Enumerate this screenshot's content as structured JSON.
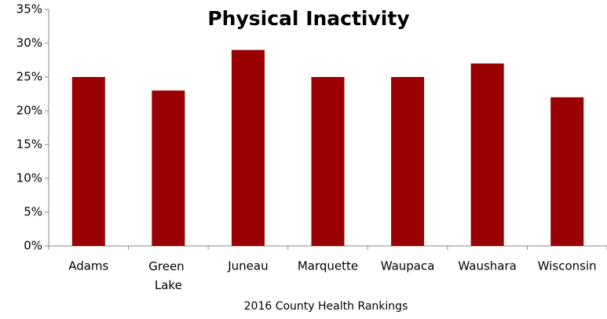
{
  "chart_data": {
    "type": "bar",
    "title": "Physical Inactivity",
    "xlabel": "2016 County Health Rankings",
    "categories": [
      "Adams",
      "Green Lake",
      "Juneau",
      "Marquette",
      "Waupaca",
      "Waushara",
      "Wisconsin"
    ],
    "values": [
      25,
      23,
      29,
      25,
      25,
      27,
      22
    ],
    "color": "#990000",
    "ylim": [
      0,
      35
    ],
    "yticks": [
      {
        "value": 0,
        "label": "0%"
      },
      {
        "value": 5,
        "label": "5%"
      },
      {
        "value": 10,
        "label": "10%"
      },
      {
        "value": 15,
        "label": "15%"
      },
      {
        "value": 20,
        "label": "20%"
      },
      {
        "value": 25,
        "label": "25%"
      },
      {
        "value": 30,
        "label": "30%"
      },
      {
        "value": 35,
        "label": "35%"
      }
    ],
    "grid": false
  }
}
